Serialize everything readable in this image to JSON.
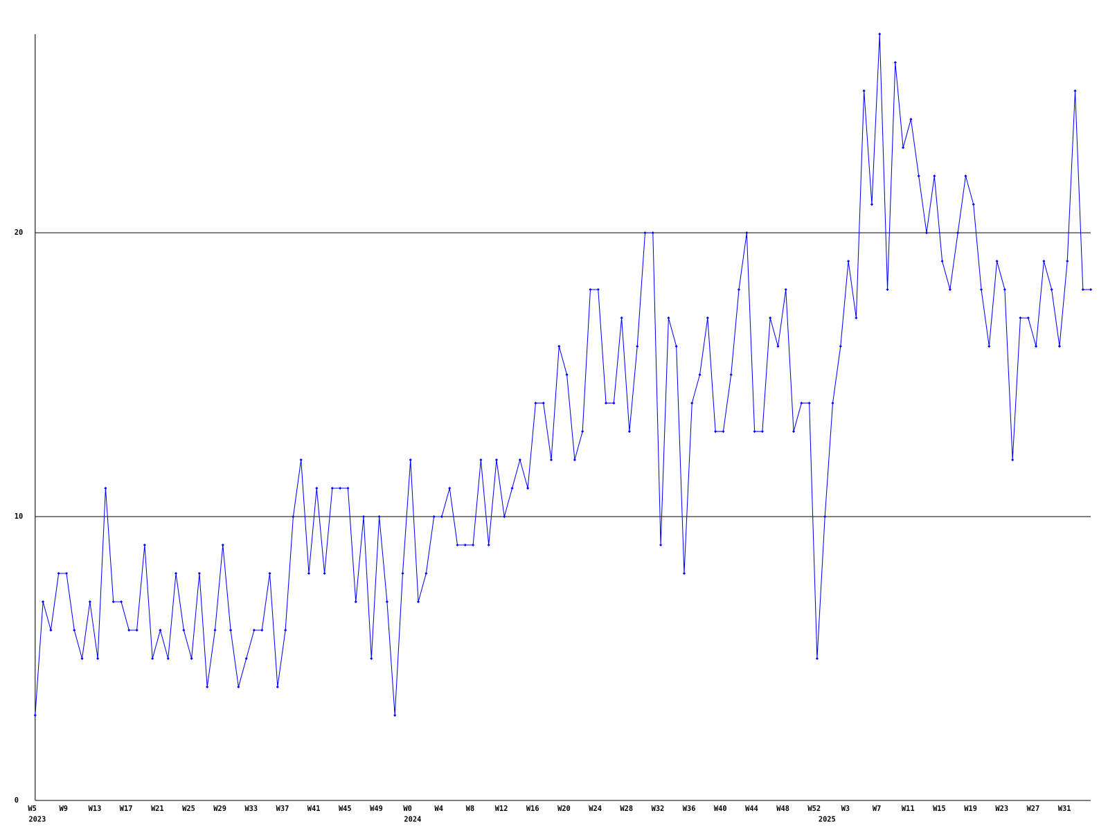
{
  "chart_data": {
    "type": "line",
    "categories": [
      "W5",
      null,
      null,
      null,
      "W9",
      null,
      null,
      null,
      "W13",
      null,
      null,
      null,
      "W17",
      null,
      null,
      null,
      "W21",
      null,
      null,
      null,
      "W25",
      null,
      null,
      null,
      "W29",
      null,
      null,
      null,
      "W33",
      null,
      null,
      null,
      "W37",
      null,
      null,
      null,
      "W41",
      null,
      null,
      null,
      "W45",
      null,
      null,
      null,
      "W49",
      null,
      null,
      null,
      "W0",
      null,
      null,
      null,
      "W4",
      null,
      null,
      null,
      "W8",
      null,
      null,
      null,
      "W12",
      null,
      null,
      null,
      "W16",
      null,
      null,
      null,
      "W20",
      null,
      null,
      null,
      "W24",
      null,
      null,
      null,
      "W28",
      null,
      null,
      null,
      "W32",
      null,
      null,
      null,
      "W36",
      null,
      null,
      null,
      "W40",
      null,
      null,
      null,
      "W44",
      null,
      null,
      null,
      "W48",
      null,
      null,
      null,
      "W52",
      null,
      null,
      null,
      "W3",
      null,
      null,
      null,
      "W7",
      null,
      null,
      null,
      "W11",
      null,
      null,
      null,
      "W15",
      null,
      null,
      null,
      "W19",
      null,
      null,
      null,
      "W23",
      null,
      null,
      null,
      "W27",
      null,
      null,
      null,
      "W31",
      null,
      null,
      null
    ],
    "year_labels": [
      {
        "index": 0,
        "label": "2023"
      },
      {
        "index": 48,
        "label": "2024"
      },
      {
        "index": 101,
        "label": "2025"
      }
    ],
    "series": [
      {
        "color": "#0000ff",
        "values": [
          3,
          7,
          6,
          8,
          8,
          6,
          5,
          7,
          5,
          11,
          7,
          7,
          6,
          6,
          9,
          5,
          6,
          5,
          8,
          6,
          5,
          8,
          4,
          6,
          9,
          6,
          4,
          5,
          6,
          6,
          8,
          4,
          6,
          10,
          12,
          8,
          11,
          8,
          11,
          11,
          11,
          7,
          10,
          5,
          10,
          7,
          3,
          8,
          12,
          7,
          8,
          10,
          10,
          11,
          9,
          9,
          9,
          12,
          9,
          12,
          10,
          11,
          12,
          11,
          14,
          14,
          12,
          16,
          15,
          12,
          13,
          18,
          18,
          14,
          14,
          17,
          13,
          16,
          20,
          20,
          9,
          17,
          16,
          8,
          14,
          15,
          17,
          13,
          13,
          15,
          18,
          20,
          13,
          13,
          17,
          16,
          18,
          13,
          14,
          14,
          5,
          10,
          14,
          16,
          19,
          17,
          25,
          21,
          27,
          18,
          26,
          23,
          24,
          22,
          20,
          22,
          19,
          18,
          20,
          22,
          21,
          18,
          16,
          19,
          18,
          12,
          17,
          17,
          16,
          19,
          18,
          16,
          19,
          25,
          18,
          18
        ]
      }
    ],
    "ylim": [
      0,
      27
    ],
    "yticks": [
      0,
      10,
      20
    ],
    "grid": true
  }
}
